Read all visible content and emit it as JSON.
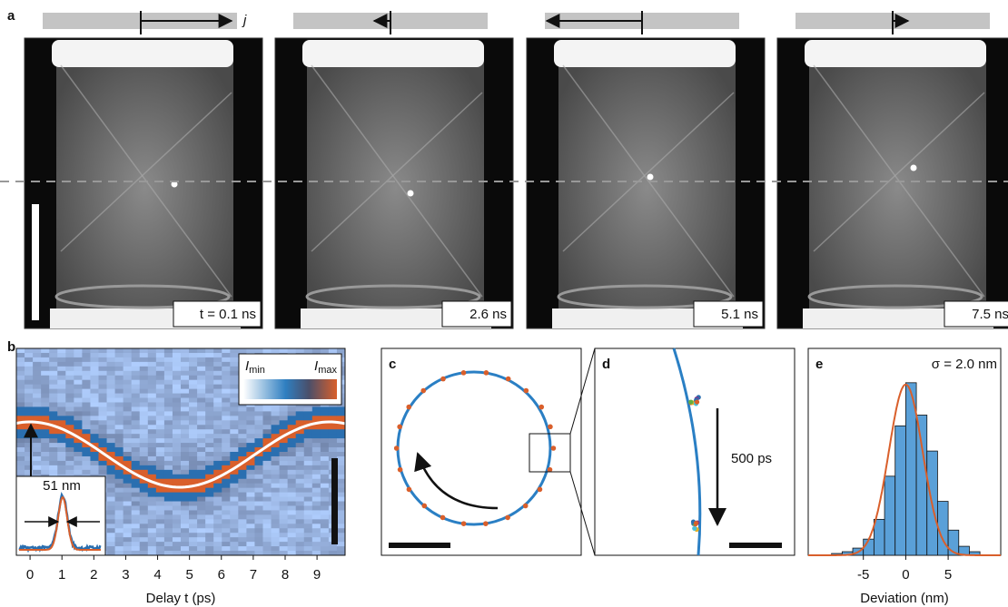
{
  "panel_labels": [
    "a",
    "b",
    "c",
    "d",
    "e"
  ],
  "panel_a": {
    "current_symbol": "j",
    "frames": [
      {
        "time": "t = 0.1 ns"
      },
      {
        "time": "2.6 ns"
      },
      {
        "time": "5.1 ns"
      },
      {
        "time": "7.5 ns"
      }
    ]
  },
  "panel_b": {
    "xlabel": "Delay t (ps)",
    "xlim": [
      -0.43,
      9.88
    ],
    "xticks": [
      0,
      1,
      2,
      3,
      4,
      5,
      6,
      7,
      8,
      9
    ],
    "colorbar_min": {
      "symbol": "I",
      "sub": "min"
    },
    "colorbar_max": {
      "symbol": "I",
      "sub": "max"
    },
    "inset_width": "51 nm"
  },
  "panel_d": {
    "arrow_label": "500 ps"
  },
  "panel_e": {
    "title": "σ = 2.0 nm",
    "xlabel": "Deviation (nm)",
    "xlim": [
      -11.5,
      11.2
    ],
    "xticks": [
      -5,
      0,
      5
    ],
    "bins": [
      -8.75,
      -7.5,
      -6.25,
      -5,
      -3.75,
      -2.5,
      -1.25,
      0,
      1.25,
      2.5,
      3.75,
      5,
      6.25,
      7.5,
      8.75
    ],
    "counts": [
      1,
      2,
      4,
      9,
      20,
      44,
      72,
      96,
      78,
      58,
      30,
      14,
      5,
      2
    ],
    "ylim": [
      0,
      105
    ],
    "fit": {
      "mean": 0,
      "sigma": 2.0,
      "amplitude": 95,
      "color": "#d95f2b"
    },
    "bar_color": "#5aa0d8"
  }
}
